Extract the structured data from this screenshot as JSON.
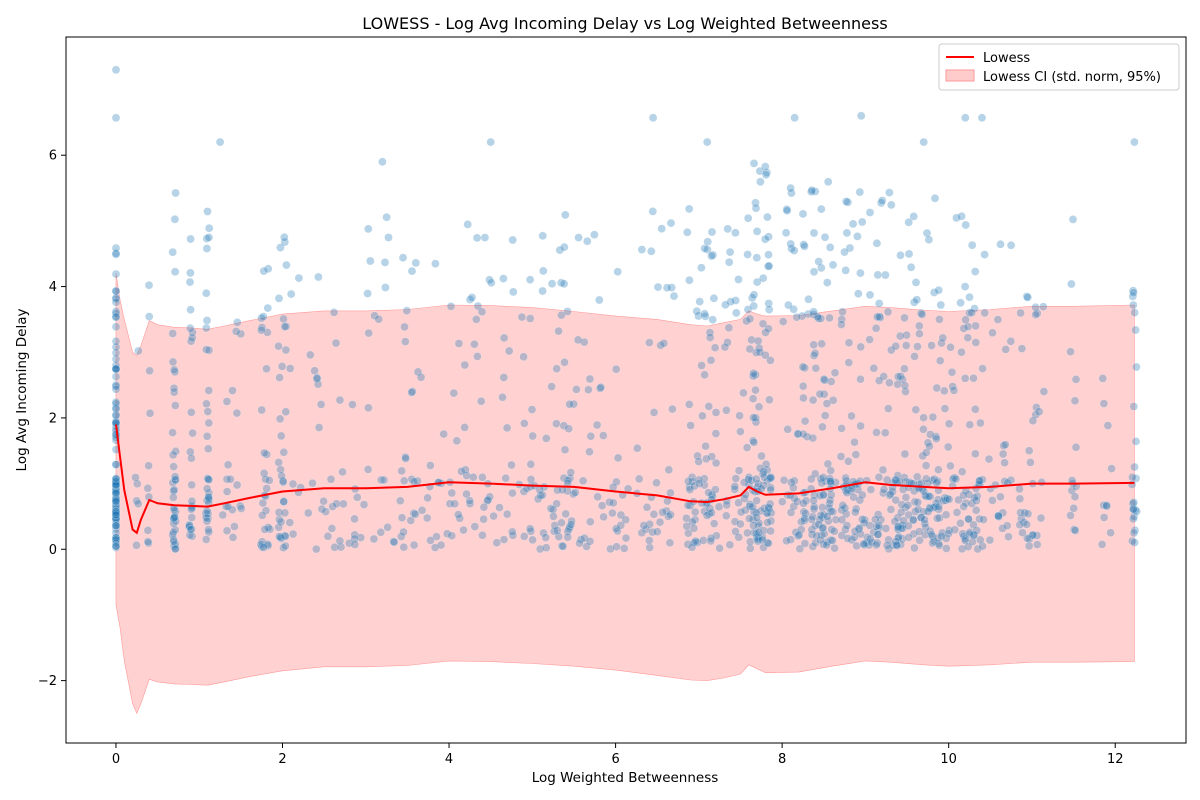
{
  "chart_data": {
    "type": "scatter",
    "title": "LOWESS - Log Avg Incoming Delay vs Log Weighted Betweenness",
    "xlabel": "Log Weighted Betweenness",
    "ylabel": "Log Avg Incoming Delay",
    "xlim": [
      -0.6,
      12.85
    ],
    "ylim": [
      -2.95,
      7.8
    ],
    "xticks": [
      0,
      2,
      4,
      6,
      8,
      10,
      12
    ],
    "yticks": [
      -2,
      0,
      2,
      4,
      6
    ],
    "grid": false,
    "legend_position": "top-right",
    "colors": {
      "scatter": "#1f77b4",
      "lowess_line": "#ff0000",
      "ci_fill": "#ffcccc",
      "ci_edge": "#ff9999"
    },
    "series": [
      {
        "name": "Lowess",
        "kind": "line",
        "x": [
          0,
          0.05,
          0.1,
          0.2,
          0.25,
          0.3,
          0.4,
          0.5,
          0.7,
          0.9,
          1.1,
          1.3,
          1.6,
          2.0,
          2.5,
          3.0,
          3.5,
          4.0,
          4.5,
          5.0,
          5.5,
          6.0,
          6.5,
          6.9,
          7.1,
          7.3,
          7.5,
          7.6,
          7.7,
          7.8,
          8.2,
          8.6,
          9.0,
          9.3,
          9.7,
          10.0,
          10.5,
          11.0,
          11.5,
          12.23
        ],
        "y": [
          1.9,
          1.4,
          0.9,
          0.3,
          0.25,
          0.45,
          0.75,
          0.7,
          0.67,
          0.66,
          0.65,
          0.7,
          0.78,
          0.88,
          0.93,
          0.93,
          0.95,
          1.02,
          1.0,
          0.97,
          0.95,
          0.88,
          0.82,
          0.73,
          0.72,
          0.76,
          0.82,
          0.95,
          0.88,
          0.83,
          0.85,
          0.93,
          1.02,
          0.98,
          0.95,
          0.93,
          0.95,
          1.0,
          1.0,
          1.01
        ]
      },
      {
        "name": "Lowess CI (std. norm, 95%)",
        "kind": "band",
        "x": [
          0,
          0.05,
          0.1,
          0.2,
          0.25,
          0.3,
          0.4,
          0.5,
          0.7,
          0.9,
          1.1,
          1.3,
          1.6,
          2.0,
          2.5,
          3.0,
          3.5,
          4.0,
          4.5,
          5.0,
          5.5,
          6.0,
          6.5,
          6.9,
          7.1,
          7.3,
          7.5,
          7.6,
          7.7,
          7.8,
          8.2,
          8.6,
          9.0,
          9.3,
          9.7,
          10.0,
          10.5,
          11.0,
          11.5,
          12.23
        ],
        "upper": [
          4.2,
          3.8,
          3.5,
          3.0,
          2.95,
          3.1,
          3.48,
          3.42,
          3.38,
          3.37,
          3.35,
          3.4,
          3.48,
          3.58,
          3.63,
          3.63,
          3.65,
          3.72,
          3.71,
          3.68,
          3.62,
          3.55,
          3.5,
          3.42,
          3.4,
          3.45,
          3.5,
          3.63,
          3.58,
          3.55,
          3.56,
          3.63,
          3.7,
          3.68,
          3.64,
          3.62,
          3.65,
          3.7,
          3.7,
          3.72
        ],
        "lower": [
          -0.85,
          -1.2,
          -1.7,
          -2.35,
          -2.5,
          -2.35,
          -1.98,
          -2.02,
          -2.05,
          -2.06,
          -2.07,
          -2.02,
          -1.94,
          -1.85,
          -1.79,
          -1.79,
          -1.77,
          -1.7,
          -1.71,
          -1.74,
          -1.78,
          -1.84,
          -1.92,
          -1.99,
          -2.0,
          -1.96,
          -1.9,
          -1.76,
          -1.82,
          -1.88,
          -1.87,
          -1.78,
          -1.7,
          -1.72,
          -1.76,
          -1.78,
          -1.76,
          -1.72,
          -1.72,
          -1.71
        ]
      }
    ],
    "scatter_summary": {
      "x_columns": [
        0,
        0.25,
        0.4,
        0.7,
        0.9,
        1.1,
        1.4,
        1.8,
        2.0,
        2.2,
        3.2,
        3.7,
        4.4,
        5.2,
        5.5,
        6.3,
        7.1,
        7.75,
        8.45,
        9.2,
        9.75,
        10.4,
        11.0,
        11.5,
        12.23
      ],
      "y_range": [
        0,
        7.3
      ],
      "notable_points": [
        {
          "x": 0,
          "y": 7.3
        },
        {
          "x": 0,
          "y": 6.57
        },
        {
          "x": 1.25,
          "y": 6.2
        },
        {
          "x": 3.2,
          "y": 5.9
        },
        {
          "x": 4.5,
          "y": 6.2
        },
        {
          "x": 6.45,
          "y": 6.57
        },
        {
          "x": 7.1,
          "y": 6.2
        },
        {
          "x": 8.15,
          "y": 6.57
        },
        {
          "x": 8.95,
          "y": 6.6
        },
        {
          "x": 9.7,
          "y": 6.2
        },
        {
          "x": 10.2,
          "y": 6.57
        },
        {
          "x": 10.4,
          "y": 6.57
        },
        {
          "x": 12.23,
          "y": 6.2
        }
      ],
      "point_count_approx": 1250
    }
  }
}
